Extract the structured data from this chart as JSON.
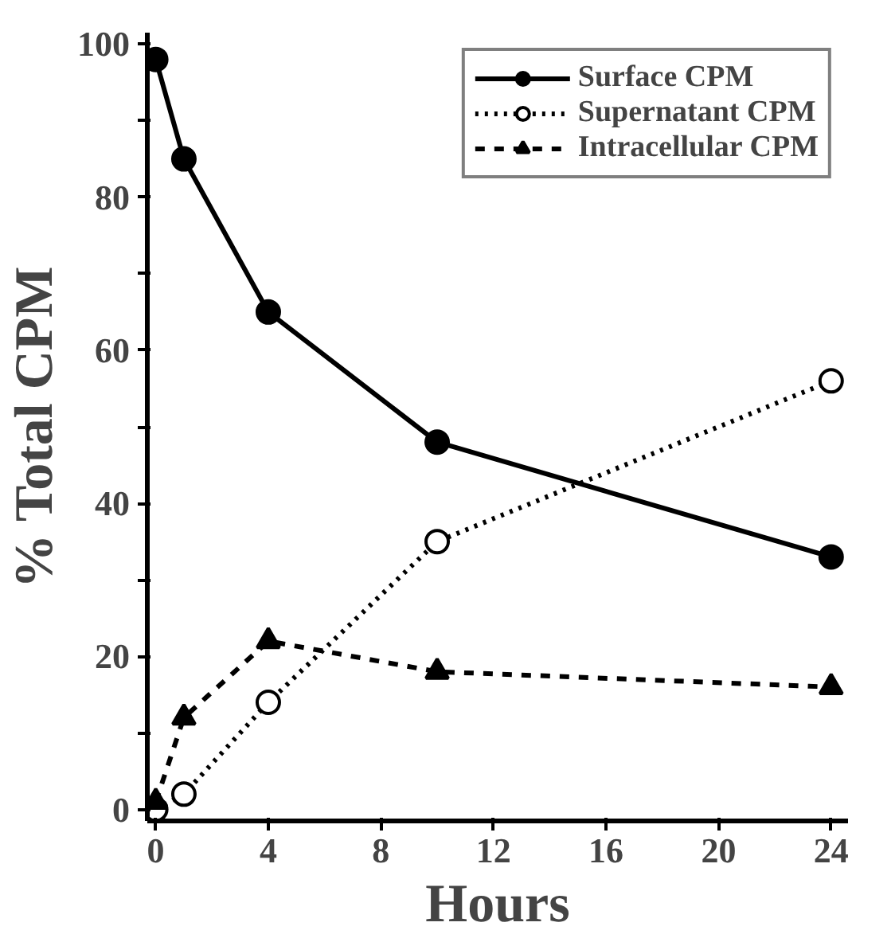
{
  "chart_data": {
    "type": "line",
    "xlabel": "Hours",
    "ylabel": "% Total CPM",
    "x": [
      0,
      1,
      4,
      10,
      24
    ],
    "series": [
      {
        "name": "Surface CPM",
        "color": "#000000",
        "values": [
          98,
          85,
          65,
          48,
          33
        ],
        "marker": "circle",
        "line_style": "solid"
      },
      {
        "name": "Supernatant CPM",
        "color": "#000000",
        "values": [
          0,
          2,
          14,
          35,
          56
        ],
        "marker": "circle",
        "line_style": "dotted"
      },
      {
        "name": "Intracellular CPM",
        "color": "#000000",
        "values": [
          1,
          12,
          22,
          18,
          16
        ],
        "marker": "triangle",
        "line_style": "dashed"
      }
    ],
    "xlim": [
      -0.3,
      24.6
    ],
    "ylim": [
      -1.5,
      101.5
    ],
    "xticks": [
      0,
      4,
      8,
      12,
      16,
      20,
      24
    ],
    "yticks": [
      0,
      {
        "value": 10,
        "label": null
      },
      20,
      {
        "value": 30,
        "label": null
      },
      40,
      {
        "value": 50,
        "label": null
      },
      60,
      {
        "value": 70,
        "label": null
      },
      80,
      {
        "value": 90,
        "label": null
      },
      100
    ],
    "legend": "top right",
    "grid": false
  }
}
